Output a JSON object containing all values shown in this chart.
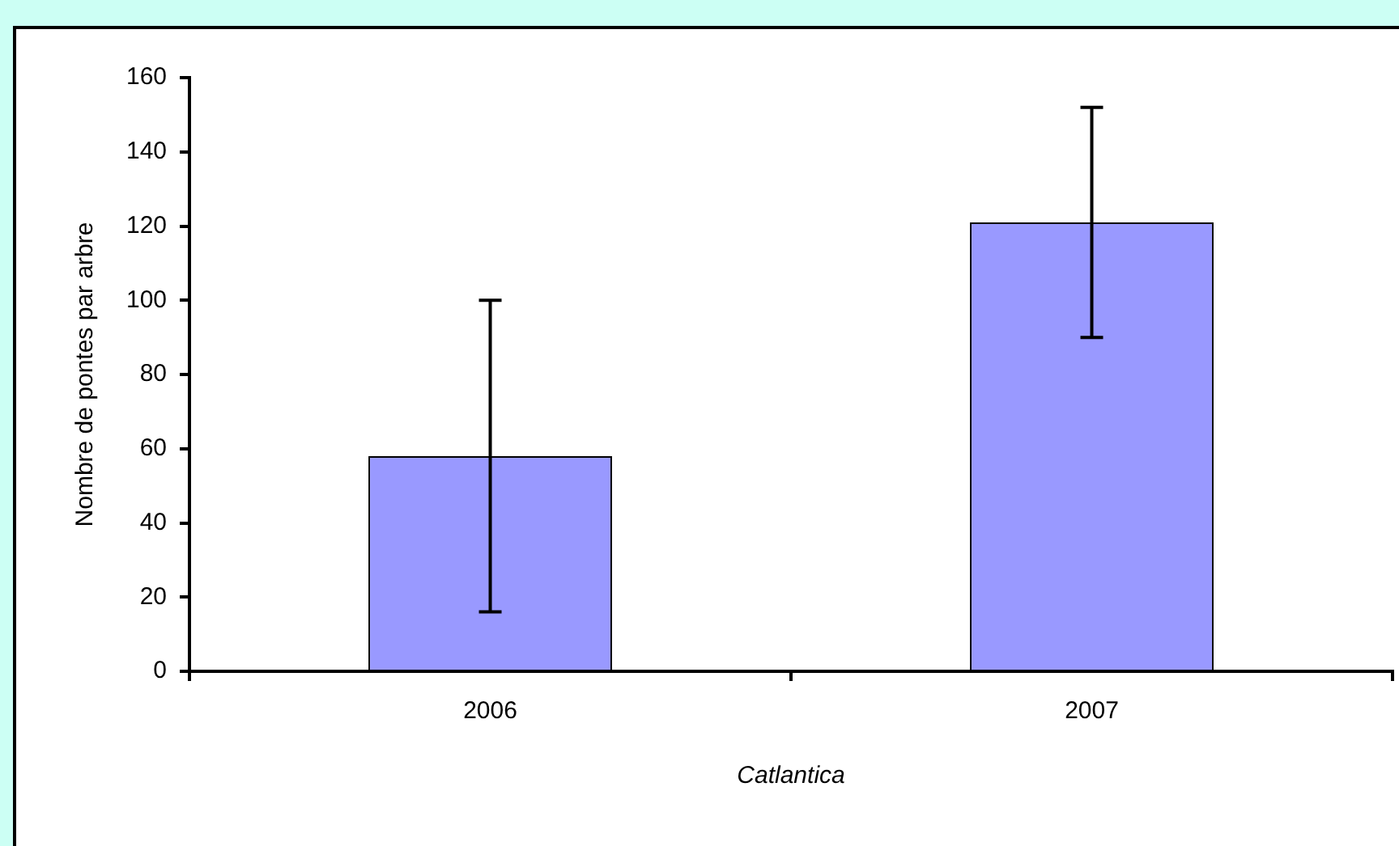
{
  "chart_data": {
    "type": "bar",
    "xlabel": "Catlantica",
    "ylabel": "Nombre de pontes par arbre",
    "categories": [
      "2006",
      "2007"
    ],
    "values": [
      58,
      121
    ],
    "errors": [
      42,
      31
    ],
    "color": "#9999ff",
    "ylim": [
      0,
      160
    ],
    "yticks": [
      0,
      20,
      40,
      60,
      80,
      100,
      120,
      140,
      160
    ],
    "grid": false,
    "legend": false
  }
}
